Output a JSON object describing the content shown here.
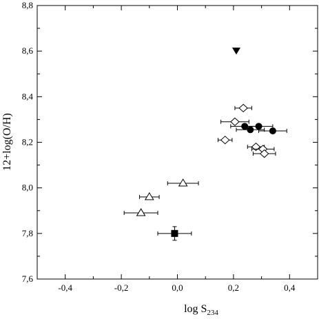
{
  "chart_data": {
    "type": "scatter",
    "xlabel": {
      "main": "log S",
      "sub": "234"
    },
    "ylabel": "12+log(O/H)",
    "xlim": [
      -0.5,
      0.5
    ],
    "ylim": [
      7.6,
      8.8
    ],
    "xticks": [
      -0.4,
      -0.2,
      0.0,
      0.2,
      0.4
    ],
    "xtick_labels": [
      "-0,4",
      "-0,2",
      "0,0",
      "0,2",
      "0,4"
    ],
    "yticks": [
      7.6,
      7.8,
      8.0,
      8.2,
      8.4,
      8.6,
      8.8
    ],
    "ytick_labels": [
      "7,6",
      "7,8",
      "8,0",
      "8,2",
      "8,4",
      "8,6",
      "8,8"
    ],
    "grid": false,
    "series": [
      {
        "marker": "diamond-open",
        "points": [
          {
            "x": 0.235,
            "y": 8.35,
            "xerr": 0.03
          },
          {
            "x": 0.205,
            "y": 8.29,
            "xerr": 0.05
          },
          {
            "x": 0.17,
            "y": 8.21,
            "xerr": 0.025
          },
          {
            "x": 0.28,
            "y": 8.18,
            "xerr": 0.03
          },
          {
            "x": 0.305,
            "y": 8.17,
            "xerr": 0.04
          },
          {
            "x": 0.31,
            "y": 8.15,
            "xerr": 0.04
          }
        ]
      },
      {
        "marker": "circle-filled",
        "points": [
          {
            "x": 0.24,
            "y": 8.27,
            "xerr": 0.05
          },
          {
            "x": 0.26,
            "y": 8.255,
            "xerr": 0.05
          },
          {
            "x": 0.29,
            "y": 8.27,
            "xerr": 0.05
          },
          {
            "x": 0.34,
            "y": 8.25,
            "xerr": 0.05
          }
        ]
      },
      {
        "marker": "triangle-open",
        "points": [
          {
            "x": 0.02,
            "y": 8.02,
            "xerr": 0.055
          },
          {
            "x": -0.1,
            "y": 7.96,
            "xerr": 0.035
          },
          {
            "x": -0.13,
            "y": 7.89,
            "xerr": 0.06
          }
        ]
      },
      {
        "marker": "square-filled",
        "points": [
          {
            "x": -0.01,
            "y": 7.8,
            "xerr": 0.06,
            "yerr": 0.03
          }
        ]
      },
      {
        "marker": "triangle-down-filled",
        "points": [
          {
            "x": 0.21,
            "y": 8.6
          }
        ]
      }
    ]
  }
}
